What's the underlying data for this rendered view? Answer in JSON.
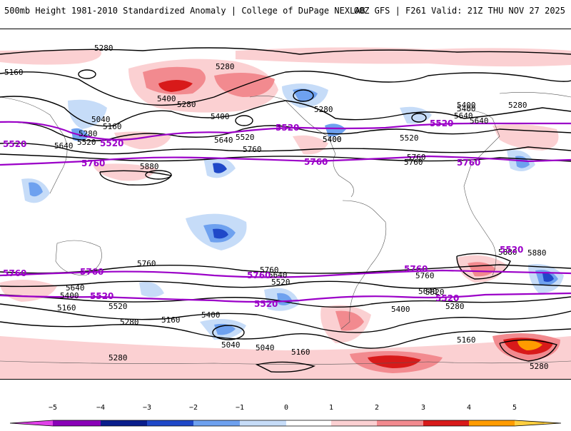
{
  "header": {
    "title": "500mb Height 1981-2010 Standardized Anomaly | College of DuPage NEXLAB",
    "run": "00Z GFS | F261 Valid: 21Z THU NOV 27 2025"
  },
  "colors": {
    "purple_contour": "#9b00c8",
    "black_contour": "#000000",
    "neg1": "#c6dcf8",
    "neg2": "#6ea1ef",
    "neg3": "#1f48c8",
    "neg4": "#0a1e8c",
    "neg5": "#8a00b8",
    "pos1": "#fbd0d2",
    "pos2": "#f28a8f",
    "pos3": "#d81a1a",
    "pos4": "#ff9c00",
    "pos5": "#ffcf40"
  },
  "colorbar": {
    "labels": [
      "−5",
      "−4",
      "−3",
      "−2",
      "−1",
      "0",
      "1",
      "2",
      "3",
      "4",
      "5"
    ]
  },
  "contour_labels": {
    "black": [
      "5280",
      "5160",
      "5280",
      "5400",
      "5280",
      "5040",
      "5160",
      "5280",
      "5520",
      "5640",
      "5400",
      "5640",
      "5520",
      "5760",
      "5880",
      "5400",
      "5280",
      "5520",
      "5640",
      "5760",
      "5400",
      "5280",
      "5400",
      "5640",
      "5760",
      "5880",
      "5760",
      "5760",
      "5640",
      "5400",
      "5520",
      "5160",
      "5520",
      "5640",
      "5400",
      "5280",
      "5160",
      "5040",
      "5040",
      "5160",
      "5280",
      "5520",
      "5640",
      "5400",
      "5280",
      "5160",
      "5280",
      "5760",
      "5880",
      "5400"
    ],
    "purple": [
      "5520",
      "5760",
      "5520",
      "5760",
      "5520",
      "5760",
      "5760",
      "5520",
      "5520",
      "5760",
      "5520",
      "5760",
      "5520",
      "5520",
      "5760"
    ]
  }
}
